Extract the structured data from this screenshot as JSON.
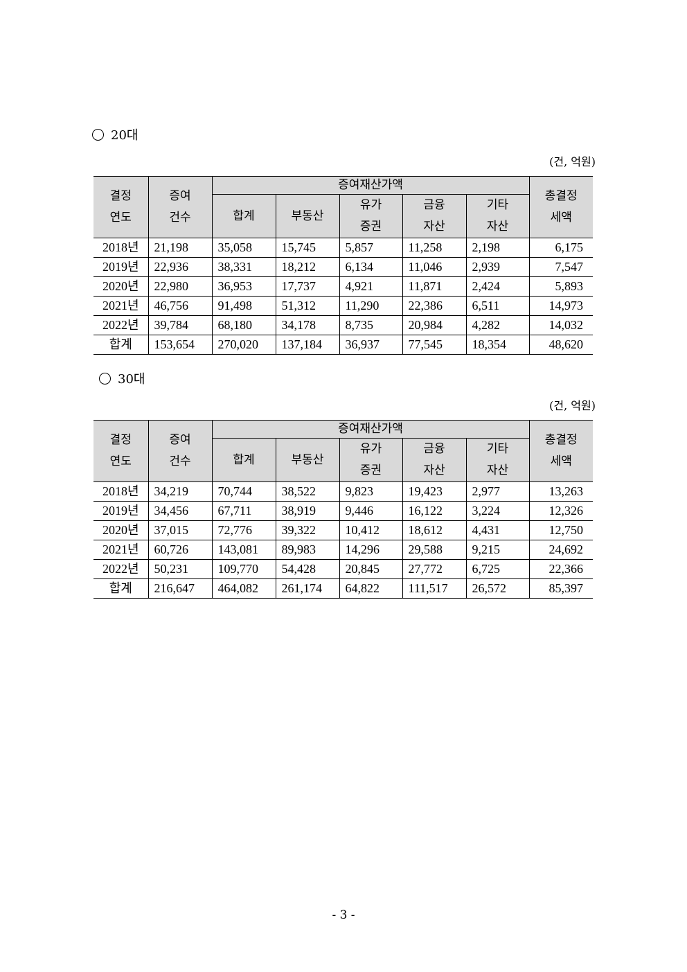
{
  "sections": [
    {
      "title": "20대",
      "unit": "(건, 억원)",
      "headers": {
        "year": [
          "결정",
          "연도"
        ],
        "count": [
          "증여",
          "건수"
        ],
        "group": "증여재산가액",
        "sub": [
          [
            "합계"
          ],
          [
            "부동산"
          ],
          [
            "유가",
            "증권"
          ],
          [
            "금융",
            "자산"
          ],
          [
            "기타",
            "자산"
          ]
        ],
        "tax": [
          "총결정",
          "세액"
        ]
      },
      "rows": [
        [
          "2018년",
          "21,198",
          "35,058",
          "15,745",
          "5,857",
          "11,258",
          "2,198",
          "6,175"
        ],
        [
          "2019년",
          "22,936",
          "38,331",
          "18,212",
          "6,134",
          "11,046",
          "2,939",
          "7,547"
        ],
        [
          "2020년",
          "22,980",
          "36,953",
          "17,737",
          "4,921",
          "11,871",
          "2,424",
          "5,893"
        ],
        [
          "2021년",
          "46,756",
          "91,498",
          "51,312",
          "11,290",
          "22,386",
          "6,511",
          "14,973"
        ],
        [
          "2022년",
          "39,784",
          "68,180",
          "34,178",
          "8,735",
          "20,984",
          "4,282",
          "14,032"
        ],
        [
          "합계",
          "153,654",
          "270,020",
          "137,184",
          "36,937",
          "77,545",
          "18,354",
          "48,620"
        ]
      ]
    },
    {
      "title": "30대",
      "unit": "(건, 억원)",
      "headers": {
        "year": [
          "결정",
          "연도"
        ],
        "count": [
          "증여",
          "건수"
        ],
        "group": "증여재산가액",
        "sub": [
          [
            "합계"
          ],
          [
            "부동산"
          ],
          [
            "유가",
            "증권"
          ],
          [
            "금융",
            "자산"
          ],
          [
            "기타",
            "자산"
          ]
        ],
        "tax": [
          "총결정",
          "세액"
        ]
      },
      "rows": [
        [
          "2018년",
          "34,219",
          "70,744",
          "38,522",
          "9,823",
          "19,423",
          "2,977",
          "13,263"
        ],
        [
          "2019년",
          "34,456",
          "67,711",
          "38,919",
          "9,446",
          "16,122",
          "3,224",
          "12,326"
        ],
        [
          "2020년",
          "37,015",
          "72,776",
          "39,322",
          "10,412",
          "18,612",
          "4,431",
          "12,750"
        ],
        [
          "2021년",
          "60,726",
          "143,081",
          "89,983",
          "14,296",
          "29,588",
          "9,215",
          "24,692"
        ],
        [
          "2022년",
          "50,231",
          "109,770",
          "54,428",
          "20,845",
          "27,772",
          "6,725",
          "22,366"
        ],
        [
          "합계",
          "216,647",
          "464,082",
          "261,174",
          "64,822",
          "111,517",
          "26,572",
          "85,397"
        ]
      ]
    }
  ],
  "page_number": "- 3 -"
}
